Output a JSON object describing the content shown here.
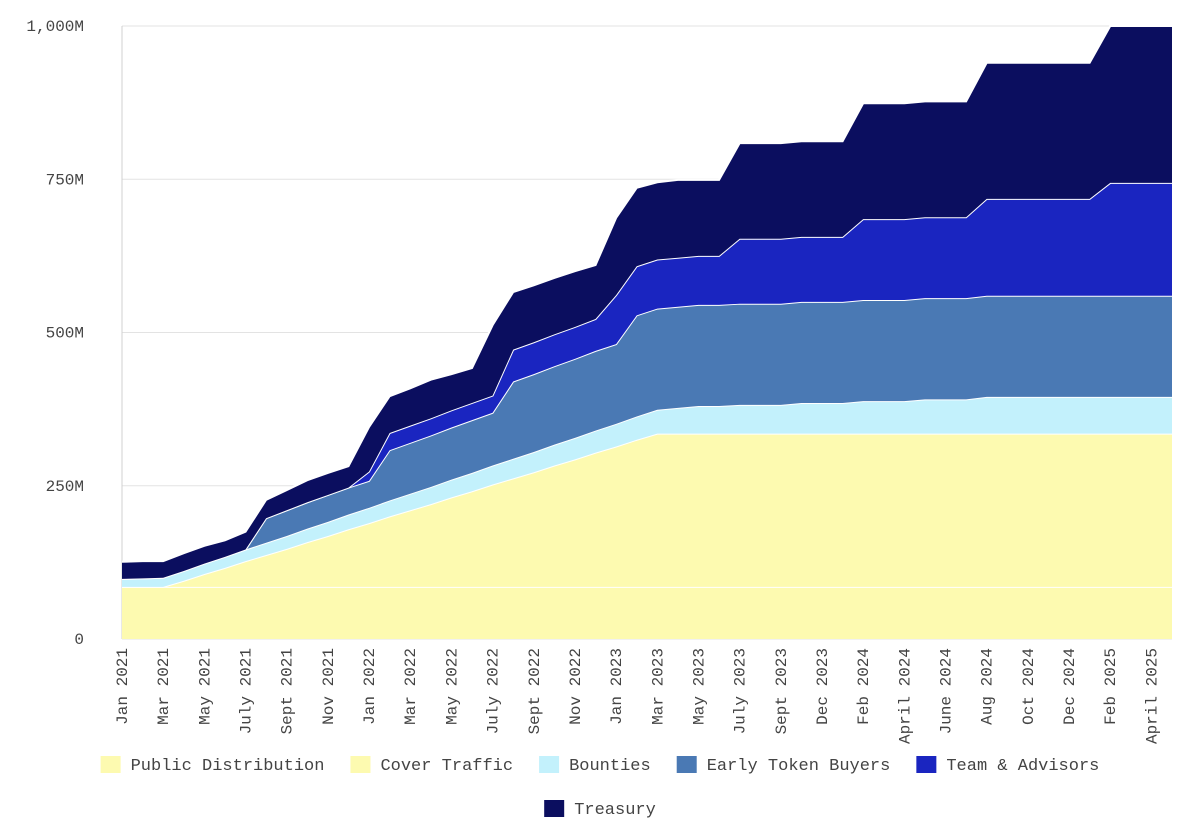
{
  "chart_data": {
    "type": "area",
    "stacked": true,
    "categories": [
      "Jan 2021",
      null,
      "Mar 2021",
      null,
      "May 2021",
      null,
      "July 2021",
      null,
      "Sept 2021",
      null,
      "Nov 2021",
      null,
      "Jan 2022",
      null,
      "Mar 2022",
      null,
      "May 2022",
      null,
      "July 2022",
      null,
      "Sept 2022",
      null,
      "Nov 2022",
      null,
      "Jan 2023",
      null,
      "Mar 2023",
      null,
      "May 2023",
      null,
      "July 2023",
      null,
      "Sept 2023",
      null,
      "Dec 2023",
      null,
      "Feb 2024",
      null,
      "April 2024",
      null,
      "June 2024",
      null,
      "Aug 2024",
      null,
      "Oct 2024",
      null,
      "Dec 2024",
      null,
      "Feb 2025",
      null,
      "April 2025",
      null
    ],
    "series": [
      {
        "name": "Public Distribution",
        "color": "#fdfab0",
        "values": [
          85,
          85,
          85,
          85,
          85,
          85,
          85,
          85,
          85,
          85,
          85,
          85,
          85,
          85,
          85,
          85,
          85,
          85,
          85,
          85,
          85,
          85,
          85,
          85,
          85,
          85,
          85,
          85,
          85,
          85,
          85,
          85,
          85,
          85,
          85,
          85,
          85,
          85,
          85,
          85,
          85,
          85,
          85,
          85,
          85,
          85,
          85,
          85,
          85,
          85,
          85,
          85
        ]
      },
      {
        "name": "Cover Traffic",
        "color": "#fdfab0",
        "values": [
          0,
          0,
          0,
          10,
          21,
          31,
          42,
          52,
          62,
          73,
          83,
          94,
          104,
          115,
          125,
          135,
          146,
          156,
          167,
          177,
          187,
          198,
          208,
          219,
          229,
          240,
          250,
          250,
          250,
          250,
          250,
          250,
          250,
          250,
          250,
          250,
          250,
          250,
          250,
          250,
          250,
          250,
          250,
          250,
          250,
          250,
          250,
          250,
          250,
          250,
          250,
          250
        ]
      },
      {
        "name": "Bounties",
        "color": "#c3f1fc",
        "values": [
          13,
          14,
          15,
          16,
          17,
          18,
          19,
          20,
          21,
          22,
          23,
          24,
          25,
          26,
          27,
          28,
          29,
          30,
          31,
          32,
          33,
          34,
          35,
          36,
          37,
          38,
          39,
          42,
          45,
          45,
          47,
          47,
          47,
          50,
          50,
          50,
          53,
          53,
          53,
          56,
          56,
          56,
          60,
          60,
          60,
          60,
          60,
          60,
          60,
          60,
          60,
          60
        ]
      },
      {
        "name": "Early Token Buyers",
        "color": "#4a79b4",
        "values": [
          0,
          0,
          0,
          0,
          0,
          0,
          0,
          40,
          42,
          43,
          44,
          44,
          44,
          82,
          83,
          84,
          85,
          86,
          86,
          126,
          127,
          128,
          129,
          130,
          130,
          165,
          165,
          165,
          165,
          165,
          165,
          165,
          165,
          165,
          165,
          165,
          165,
          165,
          165,
          165,
          165,
          165,
          165,
          165,
          165,
          165,
          165,
          165,
          165,
          165,
          165,
          165
        ]
      },
      {
        "name": "Team & Advisors",
        "color": "#1a25c0",
        "values": [
          0,
          0,
          0,
          0,
          0,
          0,
          0,
          0,
          0,
          0,
          0,
          0,
          15,
          28,
          28,
          28,
          28,
          28,
          28,
          52,
          52,
          52,
          52,
          52,
          80,
          80,
          80,
          80,
          80,
          80,
          106,
          106,
          106,
          106,
          106,
          106,
          132,
          132,
          132,
          132,
          132,
          132,
          158,
          158,
          158,
          158,
          158,
          158,
          184,
          184,
          184,
          184
        ]
      },
      {
        "name": "Treasury",
        "color": "#0b0e5f",
        "values": [
          28,
          28,
          27,
          29,
          29,
          27,
          29,
          30,
          33,
          36,
          36,
          35,
          73,
          60,
          61,
          63,
          59,
          57,
          115,
          94,
          93,
          92,
          91,
          88,
          126,
          128,
          126,
          127,
          124,
          124,
          156,
          156,
          156,
          156,
          156,
          156,
          189,
          189,
          189,
          189,
          189,
          189,
          222,
          222,
          222,
          222,
          222,
          222,
          256,
          256,
          256,
          256
        ]
      }
    ],
    "ylim": [
      0,
      1000
    ],
    "yticks": [
      0,
      {
        "value": 250,
        "label": "250M"
      },
      {
        "value": 500,
        "label": "500M"
      },
      {
        "value": 750,
        "label": "750M"
      },
      {
        "value": 1000,
        "label": "1,000M"
      }
    ],
    "grid": true,
    "legend": "bottom"
  }
}
